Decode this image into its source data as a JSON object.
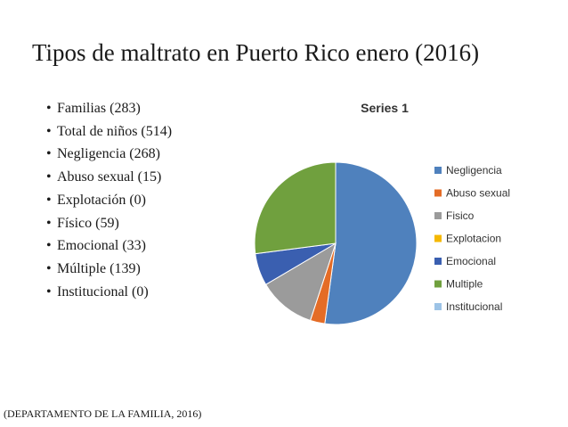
{
  "slide": {
    "title": "Tipos de maltrato en Puerto Rico enero (2016)",
    "bullets": [
      "Familias (283)",
      "Total de niños (514)",
      "Negligencia (268)",
      "Abuso sexual (15)",
      "Explotación (0)",
      "Físico (59)",
      "Emocional (33)",
      "Múltiple (139)",
      "Institucional (0)"
    ],
    "bullet_glyph": "•",
    "source": "(DEPARTAMENTO DE LA FAMILIA, 2016)"
  },
  "chart_data": {
    "type": "pie",
    "title": "Series 1",
    "categories": [
      "Negligencia",
      "Abuso sexual",
      "Fisico",
      "Explotacion",
      "Emocional",
      "Multiple",
      "Institucional"
    ],
    "values": [
      268,
      15,
      59,
      0,
      33,
      139,
      0
    ],
    "colors": [
      "#4F81BD",
      "#E46C26",
      "#9B9B9B",
      "#F5B800",
      "#3A5FB0",
      "#70A03E",
      "#9DC3E6"
    ],
    "legend": "right"
  }
}
